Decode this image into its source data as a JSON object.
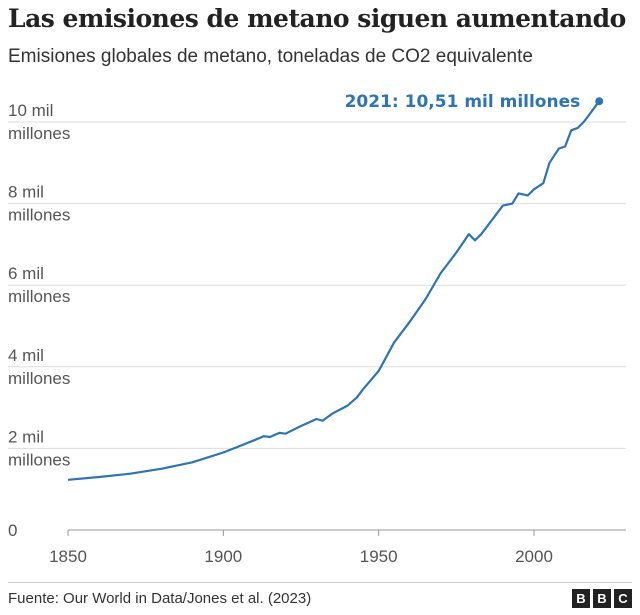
{
  "chart_data": {
    "type": "line",
    "title": "Las emisiones de metano siguen aumentando",
    "subtitle": "Emisiones globales de metano, toneladas de CO2 equivalente",
    "xlim": [
      1850,
      2021
    ],
    "ylim": [
      0,
      10.5
    ],
    "x_ticks": [
      {
        "v": 1850,
        "label": "1850"
      },
      {
        "v": 1900,
        "label": "1900"
      },
      {
        "v": 1950,
        "label": "1950"
      },
      {
        "v": 2000,
        "label": "2000"
      }
    ],
    "y_ticks": [
      {
        "v": 0,
        "label": [
          "0"
        ]
      },
      {
        "v": 2,
        "label": [
          "2 mil",
          "millones"
        ]
      },
      {
        "v": 4,
        "label": [
          "4 mil",
          "millones"
        ]
      },
      {
        "v": 6,
        "label": [
          "6 mil",
          "millones"
        ]
      },
      {
        "v": 8,
        "label": [
          "8 mil",
          "millones"
        ]
      },
      {
        "v": 10,
        "label": [
          "10 mil",
          "millones"
        ]
      }
    ],
    "grid": true,
    "color": "#2e74b5",
    "annotation": "2021: 10,51 mil millones",
    "x": [
      1850,
      1860,
      1870,
      1880,
      1890,
      1900,
      1905,
      1910,
      1913,
      1915,
      1918,
      1920,
      1925,
      1930,
      1932,
      1935,
      1940,
      1943,
      1945,
      1950,
      1955,
      1960,
      1965,
      1970,
      1975,
      1979,
      1981,
      1983,
      1985,
      1990,
      1993,
      1995,
      1998,
      2000,
      2003,
      2005,
      2008,
      2010,
      2012,
      2014,
      2016,
      2018,
      2021
    ],
    "y": [
      1.23,
      1.3,
      1.38,
      1.5,
      1.66,
      1.9,
      2.05,
      2.2,
      2.3,
      2.28,
      2.38,
      2.36,
      2.55,
      2.72,
      2.68,
      2.85,
      3.05,
      3.25,
      3.45,
      3.9,
      4.6,
      5.1,
      5.65,
      6.3,
      6.8,
      7.25,
      7.1,
      7.25,
      7.45,
      7.95,
      8.0,
      8.25,
      8.2,
      8.35,
      8.5,
      9.0,
      9.35,
      9.4,
      9.8,
      9.85,
      10.0,
      10.2,
      10.51
    ]
  },
  "footer": {
    "source": "Fuente: Our World in Data/Jones et al. (2023)",
    "logo": [
      "B",
      "B",
      "C"
    ]
  }
}
